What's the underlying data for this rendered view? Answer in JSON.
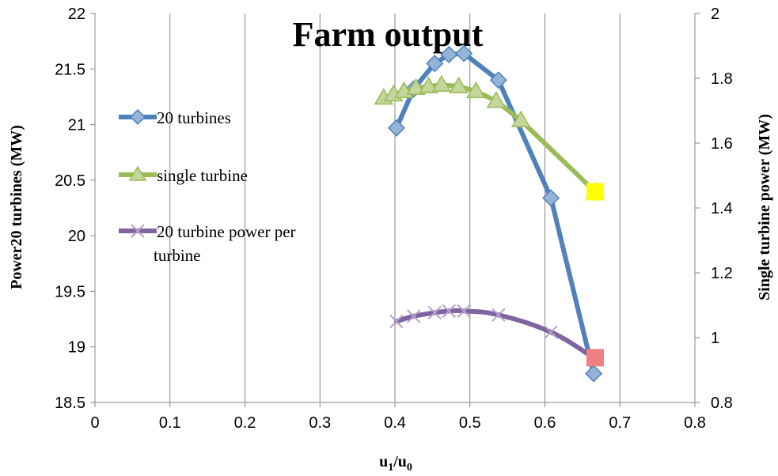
{
  "chart_data": {
    "type": "line",
    "title": "Farm output",
    "xlabel_main": "u",
    "xlabel_sub1": "1",
    "xlabel_sep": "/u",
    "xlabel_sub0": "0",
    "ylabel": "Power20 turbines (MW)",
    "y2label": "Single turbine power (MW)",
    "xlim": [
      0,
      0.8
    ],
    "ylim": [
      18.5,
      22
    ],
    "y2lim": [
      0.8,
      2
    ],
    "x_ticks": [
      "0",
      "0.1",
      "0.2",
      "0.3",
      "0.4",
      "0.5",
      "0.6",
      "0.7",
      "0.8"
    ],
    "y_ticks": [
      "18.5",
      "19",
      "19.5",
      "20",
      "20.5",
      "21",
      "21.5",
      "22"
    ],
    "y2_ticks": [
      "0.8",
      "1",
      "1.2",
      "1.4",
      "1.6",
      "1.8",
      "2"
    ],
    "grid": "vertical",
    "legend_position": "left",
    "series": [
      {
        "name": "20 turbines",
        "axis": "left",
        "color": "#4F81BD",
        "marker": "diamond",
        "x": [
          0.402,
          0.425,
          0.453,
          0.472,
          0.492,
          0.538,
          0.608,
          0.665
        ],
        "y": [
          20.97,
          21.32,
          21.55,
          21.63,
          21.64,
          21.4,
          20.34,
          18.76
        ]
      },
      {
        "name": "single turbine",
        "axis": "right",
        "color": "#9BBB59",
        "marker": "triangle",
        "x": [
          0.385,
          0.398,
          0.412,
          0.428,
          0.445,
          0.462,
          0.485,
          0.508,
          0.535,
          0.568,
          0.667
        ],
        "y": [
          1.74,
          1.75,
          1.76,
          1.77,
          1.775,
          1.78,
          1.775,
          1.76,
          1.73,
          1.67,
          1.45
        ]
      },
      {
        "name": "20 turbine power per turbine",
        "axis": "right",
        "color": "#8064A2",
        "marker": "x",
        "x": [
          0.402,
          0.425,
          0.453,
          0.472,
          0.492,
          0.538,
          0.608,
          0.665
        ],
        "y": [
          1.05,
          1.066,
          1.077,
          1.082,
          1.082,
          1.07,
          1.017,
          0.938
        ]
      }
    ],
    "endpoint_markers": [
      {
        "series": "single turbine",
        "x": 0.667,
        "y": 1.45,
        "color": "#FFFF00",
        "shape": "square"
      },
      {
        "series": "20 turbine power per turbine",
        "x": 0.667,
        "y": 0.938,
        "color": "#F08080",
        "shape": "square"
      }
    ]
  }
}
